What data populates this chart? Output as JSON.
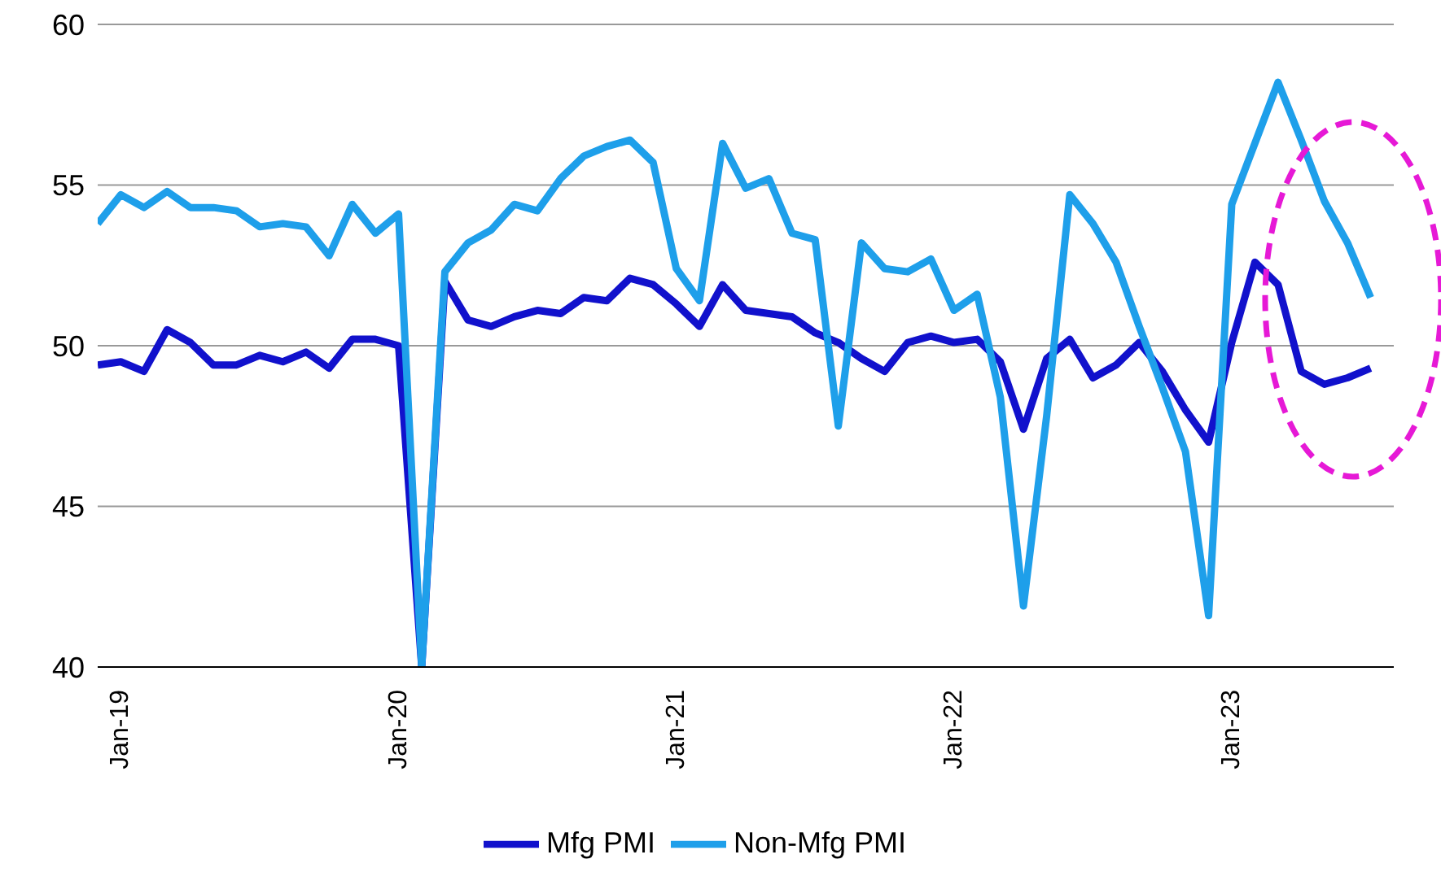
{
  "chart_data": {
    "type": "line",
    "x": [
      "2018-12",
      "2019-01",
      "2019-02",
      "2019-03",
      "2019-04",
      "2019-05",
      "2019-06",
      "2019-07",
      "2019-08",
      "2019-09",
      "2019-10",
      "2019-11",
      "2019-12",
      "2020-01",
      "2020-02",
      "2020-03",
      "2020-04",
      "2020-05",
      "2020-06",
      "2020-07",
      "2020-08",
      "2020-09",
      "2020-10",
      "2020-11",
      "2020-12",
      "2021-01",
      "2021-02",
      "2021-03",
      "2021-04",
      "2021-05",
      "2021-06",
      "2021-07",
      "2021-08",
      "2021-09",
      "2021-10",
      "2021-11",
      "2021-12",
      "2022-01",
      "2022-02",
      "2022-03",
      "2022-04",
      "2022-05",
      "2022-06",
      "2022-07",
      "2022-08",
      "2022-09",
      "2022-10",
      "2022-11",
      "2022-12",
      "2023-01",
      "2023-02",
      "2023-03",
      "2023-04",
      "2023-05",
      "2023-06",
      "2023-07"
    ],
    "xlim": [
      "2018-12",
      "2023-08"
    ],
    "xticks": [
      {
        "value": "2019-01",
        "label": "Jan-19"
      },
      {
        "value": "2020-01",
        "label": "Jan-20"
      },
      {
        "value": "2021-01",
        "label": "Jan-21"
      },
      {
        "value": "2022-01",
        "label": "Jan-22"
      },
      {
        "value": "2023-01",
        "label": "Jan-23"
      }
    ],
    "series": [
      {
        "name": "Mfg PMI",
        "color": "#1111cc",
        "values": [
          49.4,
          49.5,
          49.2,
          50.5,
          50.1,
          49.4,
          49.4,
          49.7,
          49.5,
          49.8,
          49.3,
          50.2,
          50.2,
          50.0,
          40,
          52.0,
          50.8,
          50.6,
          50.9,
          51.1,
          51.0,
          51.5,
          51.4,
          52.1,
          51.9,
          51.3,
          50.6,
          51.9,
          51.1,
          51.0,
          50.9,
          50.4,
          50.1,
          49.6,
          49.2,
          50.1,
          50.3,
          50.1,
          50.2,
          49.5,
          47.4,
          49.6,
          50.2,
          49.0,
          49.4,
          50.1,
          49.2,
          48.0,
          47.0,
          50.1,
          52.6,
          51.9,
          49.2,
          48.8,
          49.0,
          49.3
        ]
      },
      {
        "name": "Non-Mfg PMI",
        "color": "#1e9fea",
        "values": [
          53.8,
          54.7,
          54.3,
          54.8,
          54.3,
          54.3,
          54.2,
          53.7,
          53.8,
          53.7,
          52.8,
          54.4,
          53.5,
          54.1,
          40,
          52.3,
          53.2,
          53.6,
          54.4,
          54.2,
          55.2,
          55.9,
          56.2,
          56.4,
          55.7,
          52.4,
          51.4,
          56.3,
          54.9,
          55.2,
          53.5,
          53.3,
          47.5,
          53.2,
          52.4,
          52.3,
          52.7,
          51.1,
          51.6,
          48.4,
          41.9,
          47.8,
          54.7,
          53.8,
          52.6,
          50.6,
          48.7,
          46.7,
          41.6,
          54.4,
          56.3,
          58.2,
          56.4,
          54.5,
          53.2,
          51.5
        ]
      }
    ],
    "ylim": [
      40,
      60
    ],
    "yticks": [
      40,
      45,
      50,
      55,
      60
    ],
    "grid": "y",
    "legend": "bottom",
    "line_style": "solid",
    "marker": "none"
  }
}
